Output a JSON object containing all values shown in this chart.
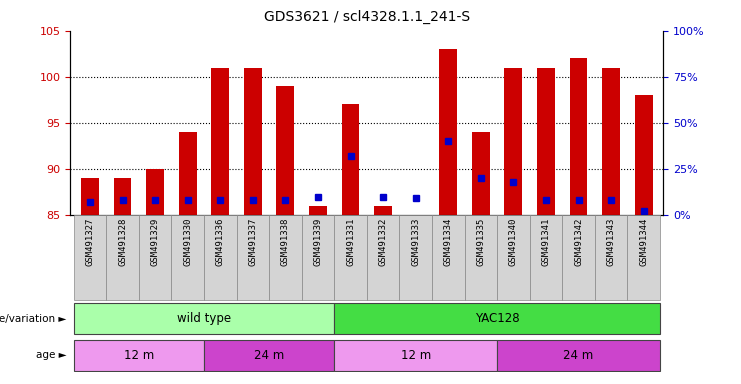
{
  "title": "GDS3621 / scl4328.1.1_241-S",
  "samples": [
    "GSM491327",
    "GSM491328",
    "GSM491329",
    "GSM491330",
    "GSM491336",
    "GSM491337",
    "GSM491338",
    "GSM491339",
    "GSM491331",
    "GSM491332",
    "GSM491333",
    "GSM491334",
    "GSM491335",
    "GSM491340",
    "GSM491341",
    "GSM491342",
    "GSM491343",
    "GSM491344"
  ],
  "counts": [
    89,
    89,
    90,
    94,
    101,
    101,
    99,
    86,
    97,
    86,
    85,
    103,
    94,
    101,
    101,
    102,
    101,
    98
  ],
  "percentiles": [
    7,
    8,
    8,
    8,
    8,
    8,
    8,
    10,
    32,
    10,
    9,
    40,
    20,
    18,
    8,
    8,
    8,
    2
  ],
  "ylim_left": [
    85,
    105
  ],
  "ylim_right": [
    0,
    100
  ],
  "yticks_left": [
    85,
    90,
    95,
    100,
    105
  ],
  "yticks_right": [
    0,
    25,
    50,
    75,
    100
  ],
  "bar_color": "#cc0000",
  "dot_color": "#0000cc",
  "bar_bottom": 85,
  "genotype_groups": [
    {
      "label": "wild type",
      "start": 0,
      "end": 8,
      "color": "#aaffaa"
    },
    {
      "label": "YAC128",
      "start": 8,
      "end": 18,
      "color": "#44dd44"
    }
  ],
  "age_groups": [
    {
      "label": "12 m",
      "start": 0,
      "end": 4,
      "color": "#ee99ee"
    },
    {
      "label": "24 m",
      "start": 4,
      "end": 8,
      "color": "#cc44cc"
    },
    {
      "label": "12 m",
      "start": 8,
      "end": 13,
      "color": "#ee99ee"
    },
    {
      "label": "24 m",
      "start": 13,
      "end": 18,
      "color": "#cc44cc"
    }
  ],
  "legend_count_color": "#cc0000",
  "legend_pct_color": "#0000cc",
  "left_tick_color": "#cc0000",
  "right_tick_color": "#0000cc",
  "grid_ticks": [
    90,
    95,
    100
  ]
}
